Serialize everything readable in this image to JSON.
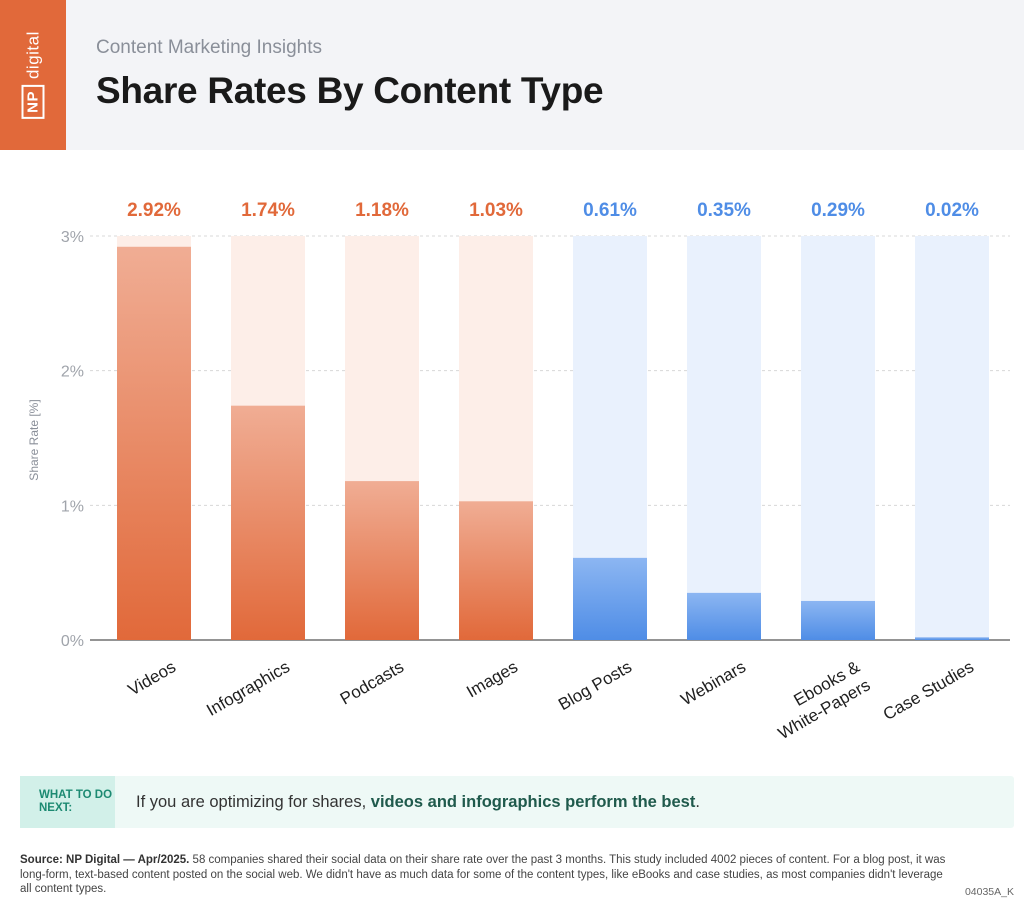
{
  "brand": {
    "logo_np": "NP",
    "logo_word": "digital",
    "orange": "#e1693a",
    "blue": "#4f8de6"
  },
  "header": {
    "subtitle": "Content Marketing Insights",
    "title": "Share Rates By Content Type"
  },
  "chart_data": {
    "type": "bar",
    "title": "Share Rates By Content Type",
    "ylabel": "Share Rate [%]",
    "xlabel": "",
    "ylim": [
      0,
      3
    ],
    "yticks": [
      0,
      1,
      2,
      3
    ],
    "ytick_labels": [
      "0%",
      "1%",
      "2%",
      "3%"
    ],
    "grid": true,
    "categories": [
      "Videos",
      "Infographics",
      "Podcasts",
      "Images",
      "Blog Posts",
      "Webinars",
      "Ebooks & White-Papers",
      "Case Studies"
    ],
    "category_lines": [
      [
        "Videos"
      ],
      [
        "Infographics"
      ],
      [
        "Podcasts"
      ],
      [
        "Images"
      ],
      [
        "Blog Posts"
      ],
      [
        "Webinars"
      ],
      [
        "Ebooks &",
        "White-Papers"
      ],
      [
        "Case Studies"
      ]
    ],
    "values": [
      2.92,
      1.74,
      1.18,
      1.03,
      0.61,
      0.35,
      0.29,
      0.02
    ],
    "value_labels": [
      "2.92%",
      "1.74%",
      "1.18%",
      "1.03%",
      "0.61%",
      "0.35%",
      "0.29%",
      "0.02%"
    ],
    "bar_colors": [
      "orange",
      "orange",
      "orange",
      "orange",
      "blue",
      "blue",
      "blue",
      "blue"
    ]
  },
  "callout": {
    "tag": "WHAT TO DO NEXT:",
    "text_plain": "If you are optimizing for shares, ",
    "text_bold": "videos and infographics perform the best",
    "text_end": "."
  },
  "footer": {
    "source_bold": "Source: NP Digital — Apr/2025.",
    "source_text": " 58 companies shared their social data on their share rate over the past 3 months. This study included 4002 pieces of content. For a blog post, it was long-form, text-based content posted on the social web. We didn't have as much data for some of the content types, like eBooks and case studies, as most companies didn't leverage all content types.",
    "code": "04035A_K"
  }
}
